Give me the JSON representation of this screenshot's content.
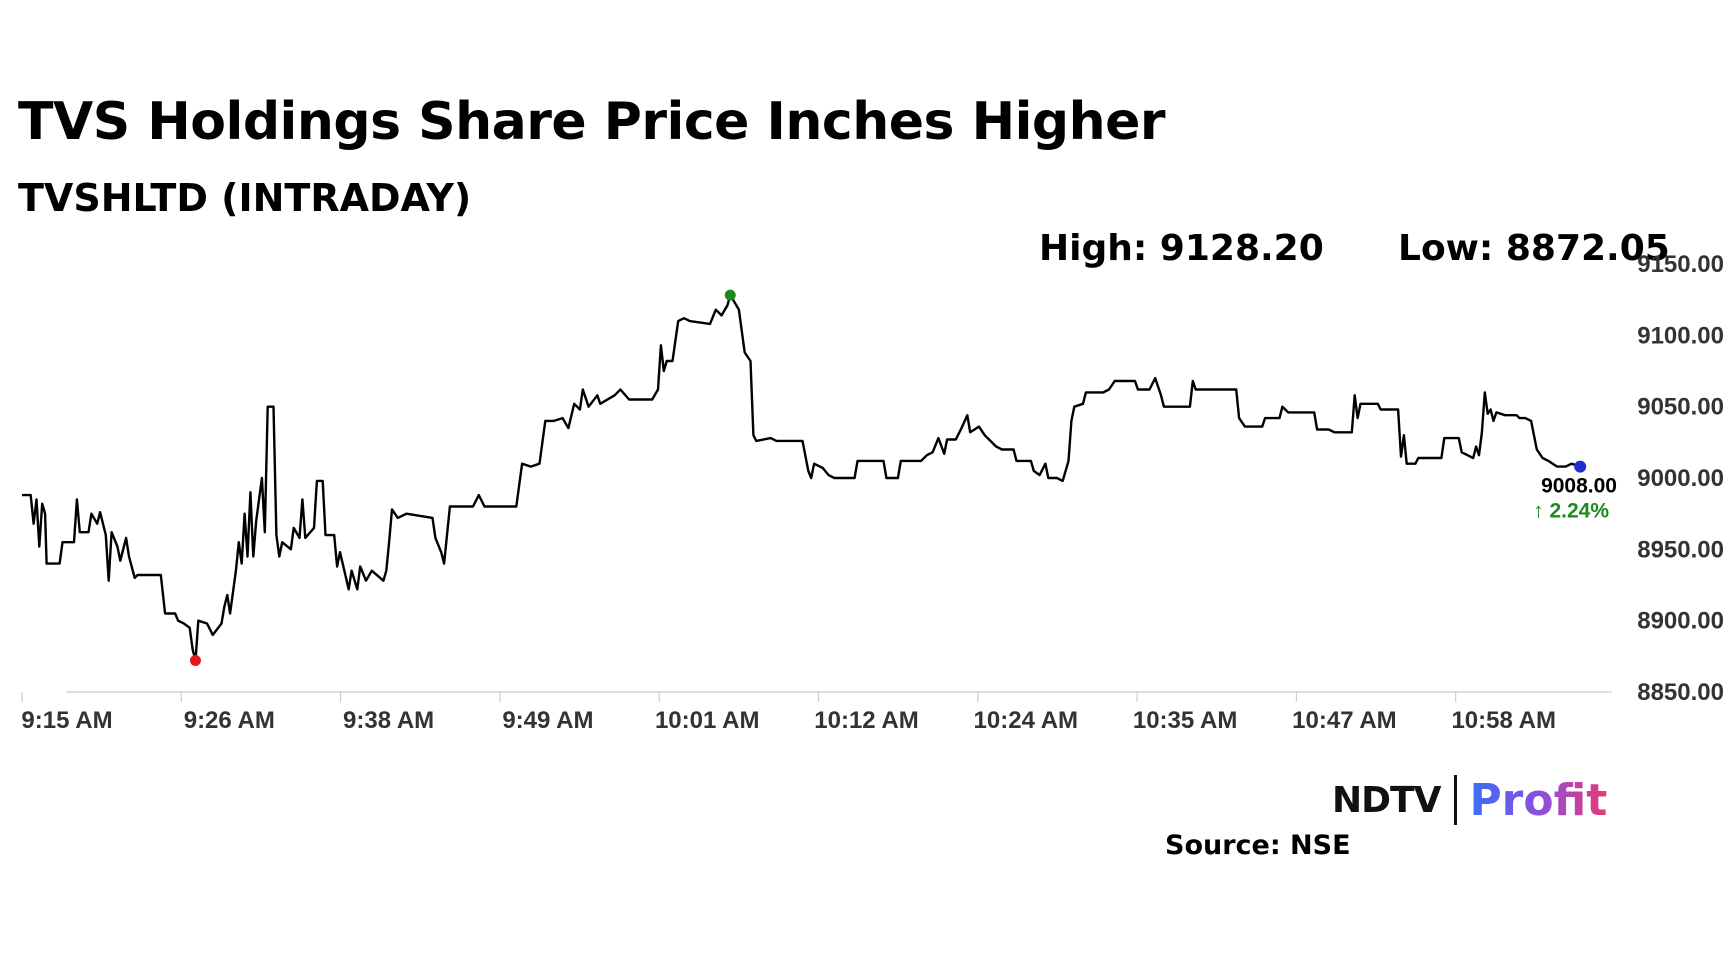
{
  "header": {
    "title": "TVS Holdings Share Price Inches Higher",
    "subtitle": "TVSHLTD (INTRADAY)",
    "high_label": "High: 9128.20",
    "low_label": "Low: 8872.05"
  },
  "footer": {
    "logo_left": "NDTV",
    "logo_right": "Profit",
    "source": "Source: NSE"
  },
  "colors": {
    "line": "#000000",
    "high_marker": "#1e8a1e",
    "low_marker": "#e01b1b",
    "last_marker": "#1f2fd0",
    "change": "#1e8a1e"
  },
  "chart_data": {
    "type": "line",
    "title": "TVS Holdings Share Price Inches Higher",
    "subtitle": "TVSHLTD (INTRADAY)",
    "x_tick_labels": [
      "9:15 AM",
      "9:26 AM",
      "9:38 AM",
      "9:49 AM",
      "10:01 AM",
      "10:12 AM",
      "10:24 AM",
      "10:35 AM",
      "10:47 AM",
      "10:58 AM"
    ],
    "y_tick_labels": [
      "9150.00",
      "9100.00",
      "9050.00",
      "9000.00",
      "8950.00",
      "8900.00",
      "8850.00"
    ],
    "ylim": [
      8850,
      9150
    ],
    "x_range_minutes": [
      0,
      110
    ],
    "y_axis_position": "right",
    "grid": false,
    "last_value_label": "9008.00",
    "change_label": "↑ 2.24%",
    "high": 9128.2,
    "low": 8872.05,
    "series": [
      {
        "points": [
          [
            0,
            8988
          ],
          [
            0.6,
            8988
          ],
          [
            0.8,
            8968
          ],
          [
            1.0,
            8985
          ],
          [
            1.2,
            8952
          ],
          [
            1.4,
            8982
          ],
          [
            1.6,
            8975
          ],
          [
            1.7,
            8940
          ],
          [
            2.6,
            8940
          ],
          [
            2.8,
            8955
          ],
          [
            3.6,
            8955
          ],
          [
            3.8,
            8985
          ],
          [
            4.0,
            8962
          ],
          [
            4.6,
            8962
          ],
          [
            4.8,
            8975
          ],
          [
            5.2,
            8968
          ],
          [
            5.4,
            8976
          ],
          [
            5.8,
            8960
          ],
          [
            6.0,
            8928
          ],
          [
            6.2,
            8962
          ],
          [
            6.6,
            8952
          ],
          [
            6.8,
            8942
          ],
          [
            7.2,
            8958
          ],
          [
            7.4,
            8945
          ],
          [
            7.8,
            8930
          ],
          [
            8.0,
            8932
          ],
          [
            9.6,
            8932
          ],
          [
            9.9,
            8905
          ],
          [
            10.6,
            8905
          ],
          [
            10.8,
            8900
          ],
          [
            11.2,
            8898
          ],
          [
            11.6,
            8895
          ],
          [
            11.8,
            8880
          ],
          [
            12.0,
            8872.05
          ],
          [
            12.2,
            8900
          ],
          [
            12.8,
            8898
          ],
          [
            13.2,
            8890
          ],
          [
            13.8,
            8898
          ],
          [
            14.0,
            8910
          ],
          [
            14.2,
            8918
          ],
          [
            14.4,
            8905
          ],
          [
            14.6,
            8920
          ],
          [
            14.8,
            8935
          ],
          [
            15.0,
            8955
          ],
          [
            15.2,
            8940
          ],
          [
            15.4,
            8975
          ],
          [
            15.6,
            8945
          ],
          [
            15.8,
            8990
          ],
          [
            16.0,
            8945
          ],
          [
            16.2,
            8970
          ],
          [
            16.6,
            9000
          ],
          [
            16.8,
            8962
          ],
          [
            17.0,
            9050
          ],
          [
            17.4,
            9050
          ],
          [
            17.6,
            8960
          ],
          [
            17.8,
            8945
          ],
          [
            18.0,
            8955
          ],
          [
            18.6,
            8950
          ],
          [
            18.8,
            8965
          ],
          [
            19.2,
            8958
          ],
          [
            19.4,
            8985
          ],
          [
            19.6,
            8958
          ],
          [
            20.2,
            8965
          ],
          [
            20.4,
            8998
          ],
          [
            20.8,
            8998
          ],
          [
            21.0,
            8960
          ],
          [
            21.6,
            8960
          ],
          [
            21.8,
            8938
          ],
          [
            22.0,
            8948
          ],
          [
            22.6,
            8922
          ],
          [
            22.8,
            8935
          ],
          [
            23.2,
            8922
          ],
          [
            23.4,
            8938
          ],
          [
            23.8,
            8928
          ],
          [
            24.2,
            8935
          ],
          [
            25.0,
            8928
          ],
          [
            25.2,
            8935
          ],
          [
            25.4,
            8955
          ],
          [
            25.6,
            8978
          ],
          [
            26.0,
            8972
          ],
          [
            26.6,
            8975
          ],
          [
            28.4,
            8972
          ],
          [
            28.6,
            8958
          ],
          [
            29.0,
            8948
          ],
          [
            29.2,
            8940
          ],
          [
            29.6,
            8980
          ],
          [
            30.8,
            8980
          ],
          [
            31.2,
            8980
          ],
          [
            31.6,
            8988
          ],
          [
            32.0,
            8980
          ],
          [
            34.2,
            8980
          ],
          [
            34.6,
            9010
          ],
          [
            35.2,
            9008
          ],
          [
            35.8,
            9010
          ],
          [
            36.2,
            9040
          ],
          [
            36.8,
            9040
          ],
          [
            37.4,
            9042
          ],
          [
            37.8,
            9035
          ],
          [
            38.2,
            9052
          ],
          [
            38.6,
            9048
          ],
          [
            38.8,
            9062
          ],
          [
            39.2,
            9050
          ],
          [
            39.8,
            9058
          ],
          [
            40.0,
            9052
          ],
          [
            41.0,
            9058
          ],
          [
            41.4,
            9062
          ],
          [
            42.0,
            9055
          ],
          [
            43.6,
            9055
          ],
          [
            44.0,
            9062
          ],
          [
            44.2,
            9093
          ],
          [
            44.4,
            9075
          ],
          [
            44.6,
            9082
          ],
          [
            45.0,
            9082
          ],
          [
            45.4,
            9110
          ],
          [
            45.8,
            9112
          ],
          [
            46.2,
            9110
          ],
          [
            47.6,
            9108
          ],
          [
            48.0,
            9118
          ],
          [
            48.4,
            9114
          ],
          [
            48.8,
            9121
          ],
          [
            49.0,
            9128.2
          ],
          [
            49.6,
            9118
          ],
          [
            50.0,
            9088
          ],
          [
            50.4,
            9082
          ],
          [
            50.6,
            9030
          ],
          [
            50.8,
            9026
          ],
          [
            51.8,
            9028
          ],
          [
            52.2,
            9026
          ],
          [
            54.0,
            9026
          ],
          [
            54.4,
            9005
          ],
          [
            54.6,
            9000
          ],
          [
            54.8,
            9010
          ],
          [
            55.4,
            9007
          ],
          [
            55.8,
            9002
          ],
          [
            56.2,
            9000
          ],
          [
            57.6,
            9000
          ],
          [
            57.8,
            9012
          ],
          [
            59.6,
            9012
          ],
          [
            59.8,
            9000
          ],
          [
            60.6,
            9000
          ],
          [
            60.8,
            9012
          ],
          [
            62.2,
            9012
          ],
          [
            62.6,
            9016
          ],
          [
            63.0,
            9018
          ],
          [
            63.4,
            9028
          ],
          [
            63.8,
            9017
          ],
          [
            64.0,
            9027
          ],
          [
            64.6,
            9027
          ],
          [
            65.0,
            9035
          ],
          [
            65.4,
            9044
          ],
          [
            65.6,
            9032
          ],
          [
            66.2,
            9036
          ],
          [
            66.6,
            9030
          ],
          [
            67.4,
            9022
          ],
          [
            67.8,
            9020
          ],
          [
            68.6,
            9020
          ],
          [
            68.8,
            9012
          ],
          [
            69.8,
            9012
          ],
          [
            70.0,
            9005
          ],
          [
            70.4,
            9002
          ],
          [
            70.8,
            9010
          ],
          [
            71.0,
            9000
          ],
          [
            71.6,
            9000
          ],
          [
            72.0,
            8998
          ],
          [
            72.4,
            9012
          ],
          [
            72.6,
            9040
          ],
          [
            72.8,
            9050
          ],
          [
            73.4,
            9052
          ],
          [
            73.6,
            9060
          ],
          [
            74.8,
            9060
          ],
          [
            75.2,
            9062
          ],
          [
            75.6,
            9068
          ],
          [
            77.0,
            9068
          ],
          [
            77.2,
            9062
          ],
          [
            78.0,
            9062
          ],
          [
            78.4,
            9070
          ],
          [
            78.8,
            9058
          ],
          [
            79.0,
            9050
          ],
          [
            80.8,
            9050
          ],
          [
            81.0,
            9068
          ],
          [
            81.2,
            9062
          ],
          [
            84.0,
            9062
          ],
          [
            84.2,
            9042
          ],
          [
            84.6,
            9036
          ],
          [
            85.8,
            9036
          ],
          [
            86.0,
            9042
          ],
          [
            87.0,
            9042
          ],
          [
            87.2,
            9050
          ],
          [
            87.6,
            9046
          ],
          [
            89.4,
            9046
          ],
          [
            89.6,
            9034
          ],
          [
            90.4,
            9034
          ],
          [
            90.8,
            9032
          ],
          [
            92.0,
            9032
          ],
          [
            92.2,
            9058
          ],
          [
            92.4,
            9042
          ],
          [
            92.6,
            9052
          ],
          [
            93.8,
            9052
          ],
          [
            94.0,
            9048
          ],
          [
            95.2,
            9048
          ],
          [
            95.4,
            9015
          ],
          [
            95.6,
            9030
          ],
          [
            95.8,
            9010
          ],
          [
            96.4,
            9010
          ],
          [
            96.6,
            9014
          ],
          [
            98.2,
            9014
          ],
          [
            98.4,
            9028
          ],
          [
            99.4,
            9028
          ],
          [
            99.6,
            9018
          ],
          [
            100.0,
            9016
          ],
          [
            100.4,
            9014
          ],
          [
            100.6,
            9022
          ],
          [
            100.8,
            9016
          ],
          [
            101.0,
            9032
          ],
          [
            101.2,
            9060
          ],
          [
            101.4,
            9045
          ],
          [
            101.6,
            9048
          ],
          [
            101.8,
            9040
          ],
          [
            102.0,
            9046
          ],
          [
            102.6,
            9044
          ],
          [
            103.4,
            9044
          ],
          [
            103.6,
            9042
          ],
          [
            104.0,
            9042
          ],
          [
            104.4,
            9040
          ],
          [
            104.8,
            9020
          ],
          [
            105.2,
            9014
          ],
          [
            105.6,
            9012
          ],
          [
            106.2,
            9008
          ],
          [
            106.8,
            9008
          ],
          [
            107.2,
            9010
          ],
          [
            107.8,
            9008
          ]
        ]
      }
    ]
  }
}
